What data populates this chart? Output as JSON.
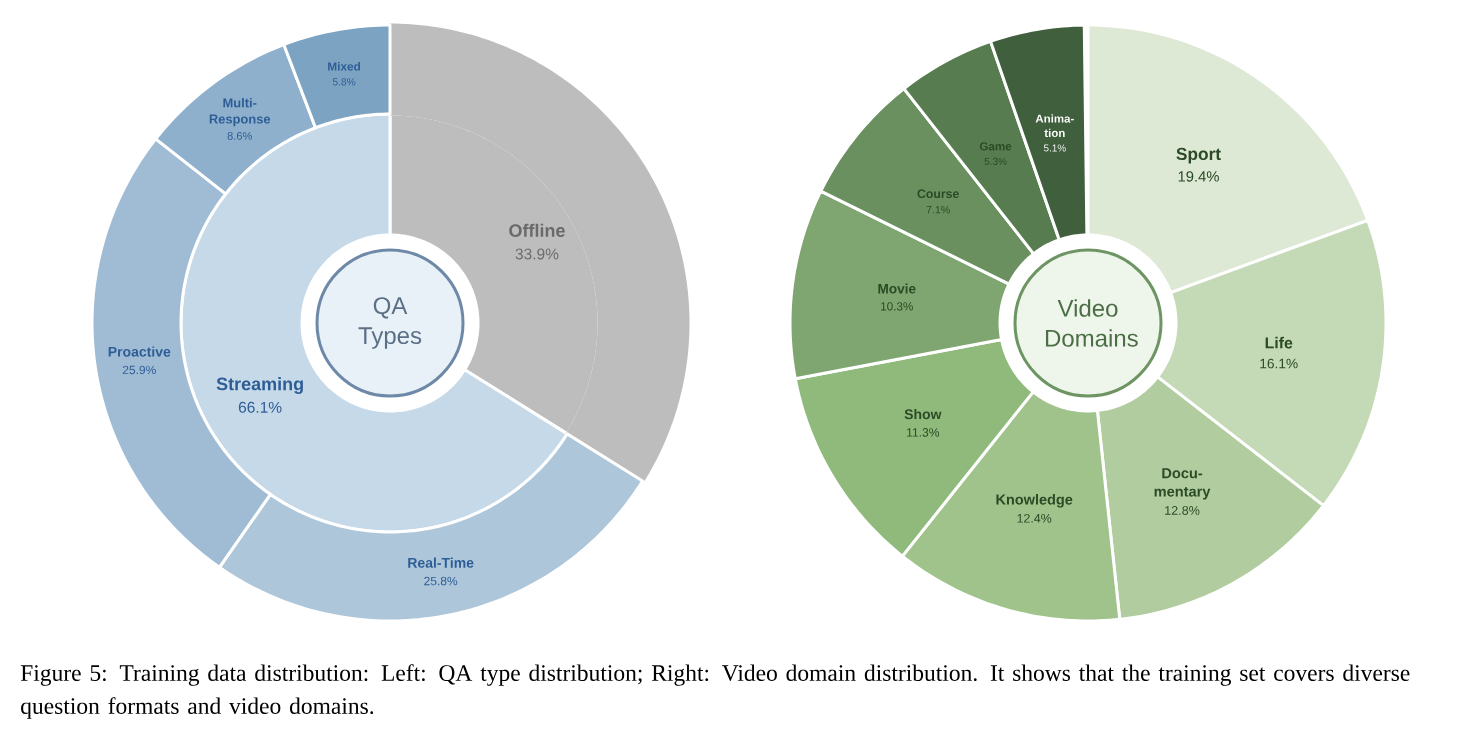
{
  "chart_data": [
    {
      "type": "donut",
      "title": "QA Types",
      "categories": [
        "Offline",
        "Streaming"
      ],
      "values": [
        33.9,
        66.1
      ],
      "value_labels": [
        "33.9%",
        "66.1%"
      ],
      "colors": [
        "#bdbdbd",
        "#c6d9e9"
      ]
    },
    {
      "type": "donut",
      "categories": [
        null,
        "Real-Time",
        "Proactive",
        "Multi-Response",
        "Mixed"
      ],
      "values": [
        33.9,
        25.8,
        25.9,
        8.6,
        5.8
      ],
      "value_labels": [
        null,
        "25.8%",
        "25.9%",
        "8.6%",
        "5.8%"
      ],
      "colors": [
        "#bdbdbd",
        "#adc6da",
        "#a0bcd4",
        "#8eb0cc",
        "#7da3c2"
      ]
    },
    {
      "type": "donut",
      "title": "Video Domains",
      "categories": [
        "Sport",
        "Life",
        "Docu-mentary",
        "Knowledge",
        "Show",
        "Movie",
        "Course",
        "Game",
        "Anima-tion"
      ],
      "values": [
        19.4,
        16.1,
        12.8,
        12.4,
        11.3,
        10.3,
        7.1,
        5.3,
        5.1
      ],
      "value_labels": [
        "19.4%",
        "16.1%",
        "12.8%",
        "12.4%",
        "11.3%",
        "10.3%",
        "7.1%",
        "5.3%",
        "5.1%"
      ],
      "colors": [
        "#dde8d5",
        "#c4d9b6",
        "#b1cd9f",
        "#9fc38b",
        "#8fba7c",
        "#7fa570",
        "#6a9060",
        "#577c4f",
        "#3f5f3d"
      ],
      "annotations": [
        "Figure 5: Training data distribution: Left: QA type distribution; Right: Video domain distribution. It shows that the training set covers diverse question formats and video domains."
      ]
    }
  ]
}
